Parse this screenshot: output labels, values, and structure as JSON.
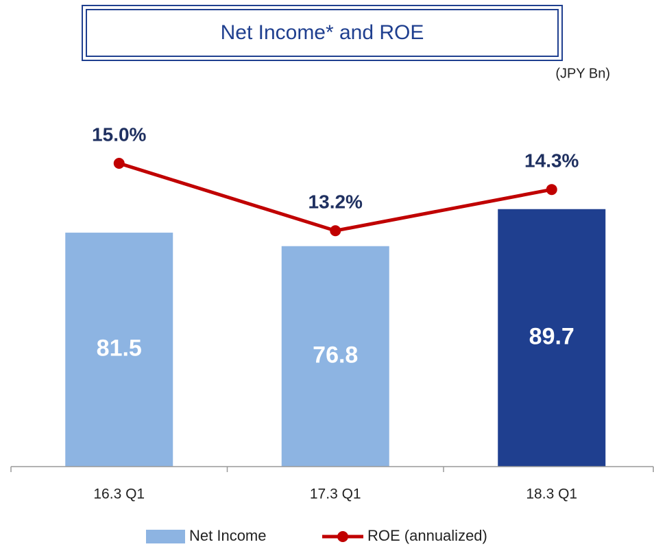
{
  "chart_data": {
    "type": "bar-line",
    "title": "Net Income* and ROE",
    "unit_label": "(JPY Bn)",
    "categories": [
      "16.3 Q1",
      "17.3 Q1",
      "18.3 Q1"
    ],
    "ylim": [
      0,
      120
    ],
    "y2lim": [
      6.9,
      16.1
    ],
    "series": [
      {
        "name": "Net Income",
        "type": "bar",
        "color": "#8DB4E2",
        "colors": [
          "#8DB4E2",
          "#8DB4E2",
          "#1F3F8F"
        ],
        "values": [
          81.5,
          76.8,
          89.7
        ]
      },
      {
        "name": "ROE (annualized)",
        "type": "line",
        "axis": "y2",
        "color": "#C00000",
        "values": [
          15.0,
          13.2,
          14.3
        ],
        "value_labels": [
          "15.0%",
          "13.2%",
          "14.3%"
        ]
      }
    ]
  }
}
